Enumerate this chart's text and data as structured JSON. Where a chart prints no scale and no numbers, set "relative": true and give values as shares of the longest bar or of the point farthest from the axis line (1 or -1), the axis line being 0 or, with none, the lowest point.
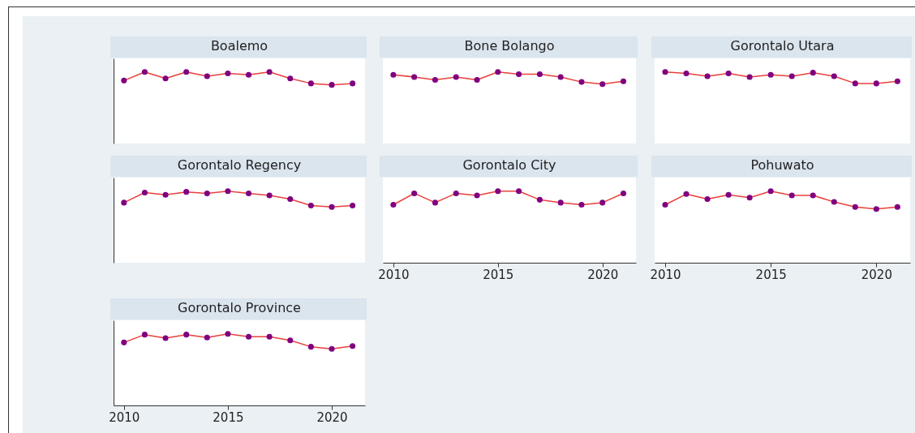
{
  "chart_data": [
    {
      "type": "line",
      "title": "Boalemo",
      "relative": true,
      "x": [
        2010,
        2011,
        2012,
        2013,
        2014,
        2015,
        2016,
        2017,
        2018,
        2019,
        2020,
        2021
      ],
      "xlim": [
        2009.5,
        2021.6
      ],
      "tick_labels": false,
      "marker": "circle",
      "series": [
        {
          "color": "#e8403c",
          "colors": [
            "#800080",
            "#800080",
            "#800080",
            "#800080",
            "#800080",
            "#800080",
            "#800080",
            "#800080",
            "#800080",
            "#800080",
            "#800080",
            "#800080"
          ],
          "values": [
            0.88,
            1,
            0.91,
            1,
            0.94,
            0.98,
            0.96,
            1,
            0.91,
            0.84,
            0.82,
            0.84
          ]
        }
      ]
    },
    {
      "type": "line",
      "title": "Bone Bolango",
      "relative": true,
      "x": [
        2010,
        2011,
        2012,
        2013,
        2014,
        2015,
        2016,
        2017,
        2018,
        2019,
        2020,
        2021
      ],
      "xlim": [
        2009.5,
        2021.6
      ],
      "tick_labels": false,
      "marker": "circle",
      "series": [
        {
          "color": "#e8403c",
          "colors": [
            "#800080",
            "#800080",
            "#800080",
            "#800080",
            "#800080",
            "#800080",
            "#800080",
            "#800080",
            "#800080",
            "#800080",
            "#800080",
            "#800080"
          ],
          "values": [
            0.96,
            0.93,
            0.89,
            0.93,
            0.89,
            1,
            0.97,
            0.97,
            0.93,
            0.86,
            0.83,
            0.87
          ]
        }
      ]
    },
    {
      "type": "line",
      "title": "Gorontalo Utara",
      "relative": true,
      "x": [
        2010,
        2011,
        2012,
        2013,
        2014,
        2015,
        2016,
        2017,
        2018,
        2019,
        2020,
        2021
      ],
      "xlim": [
        2009.5,
        2021.6
      ],
      "tick_labels": false,
      "marker": "circle",
      "series": [
        {
          "color": "#e8403c",
          "colors": [
            "#800080",
            "#800080",
            "#800080",
            "#800080",
            "#800080",
            "#800080",
            "#800080",
            "#800080",
            "#800080",
            "#800080",
            "#800080",
            "#800080"
          ],
          "values": [
            1,
            0.98,
            0.94,
            0.98,
            0.93,
            0.96,
            0.94,
            0.99,
            0.94,
            0.84,
            0.84,
            0.87
          ]
        }
      ]
    },
    {
      "type": "line",
      "title": "Gorontalo Regency",
      "relative": true,
      "x": [
        2010,
        2011,
        2012,
        2013,
        2014,
        2015,
        2016,
        2017,
        2018,
        2019,
        2020,
        2021
      ],
      "xlim": [
        2009.5,
        2021.6
      ],
      "tick_labels": false,
      "marker": "circle",
      "series": [
        {
          "color": "#e8403c",
          "colors": [
            "#800080",
            "#800080",
            "#800080",
            "#800080",
            "#800080",
            "#800080",
            "#800080",
            "#800080",
            "#800080",
            "#800080",
            "#800080",
            "#800080"
          ],
          "values": [
            0.84,
            0.98,
            0.95,
            0.99,
            0.97,
            1,
            0.97,
            0.94,
            0.89,
            0.8,
            0.78,
            0.8
          ]
        }
      ]
    },
    {
      "type": "line",
      "title": "Gorontalo City",
      "relative": true,
      "x": [
        2010,
        2011,
        2012,
        2013,
        2014,
        2015,
        2016,
        2017,
        2018,
        2019,
        2020,
        2021
      ],
      "xlim": [
        2009.5,
        2021.6
      ],
      "xticks": [
        2010,
        2015,
        2020
      ],
      "tick_labels": "x",
      "marker": "circle",
      "series": [
        {
          "color": "#e8403c",
          "colors": [
            "#800080",
            "#800080",
            "#800080",
            "#800080",
            "#800080",
            "#800080",
            "#800080",
            "#800080",
            "#800080",
            "#800080",
            "#800080",
            "#800080"
          ],
          "values": [
            0.81,
            0.97,
            0.84,
            0.97,
            0.94,
            1,
            1,
            0.88,
            0.84,
            0.81,
            0.84,
            0.97
          ]
        }
      ]
    },
    {
      "type": "line",
      "title": "Pohuwato",
      "relative": true,
      "x": [
        2010,
        2011,
        2012,
        2013,
        2014,
        2015,
        2016,
        2017,
        2018,
        2019,
        2020,
        2021
      ],
      "xlim": [
        2009.5,
        2021.6
      ],
      "xticks": [
        2010,
        2015,
        2020
      ],
      "tick_labels": "x",
      "marker": "circle",
      "series": [
        {
          "color": "#e8403c",
          "colors": [
            "#800080",
            "#800080",
            "#800080",
            "#800080",
            "#800080",
            "#800080",
            "#800080",
            "#800080",
            "#800080",
            "#800080",
            "#800080",
            "#800080"
          ],
          "values": [
            0.81,
            0.96,
            0.89,
            0.95,
            0.91,
            1,
            0.94,
            0.94,
            0.85,
            0.78,
            0.75,
            0.78
          ]
        }
      ]
    },
    {
      "type": "line",
      "title": "Gorontalo Province",
      "relative": true,
      "x": [
        2010,
        2011,
        2012,
        2013,
        2014,
        2015,
        2016,
        2017,
        2018,
        2019,
        2020,
        2021
      ],
      "xlim": [
        2009.5,
        2021.6
      ],
      "xticks": [
        2010,
        2015,
        2020
      ],
      "tick_labels": "x",
      "marker": "circle",
      "series": [
        {
          "color": "#e8403c",
          "colors": [
            "#800080",
            "#800080",
            "#800080",
            "#800080",
            "#800080",
            "#800080",
            "#800080",
            "#800080",
            "#800080",
            "#800080",
            "#800080",
            "#800080"
          ],
          "values": [
            0.88,
            0.99,
            0.94,
            0.99,
            0.95,
            1,
            0.96,
            0.96,
            0.91,
            0.82,
            0.79,
            0.83
          ]
        }
      ]
    }
  ]
}
